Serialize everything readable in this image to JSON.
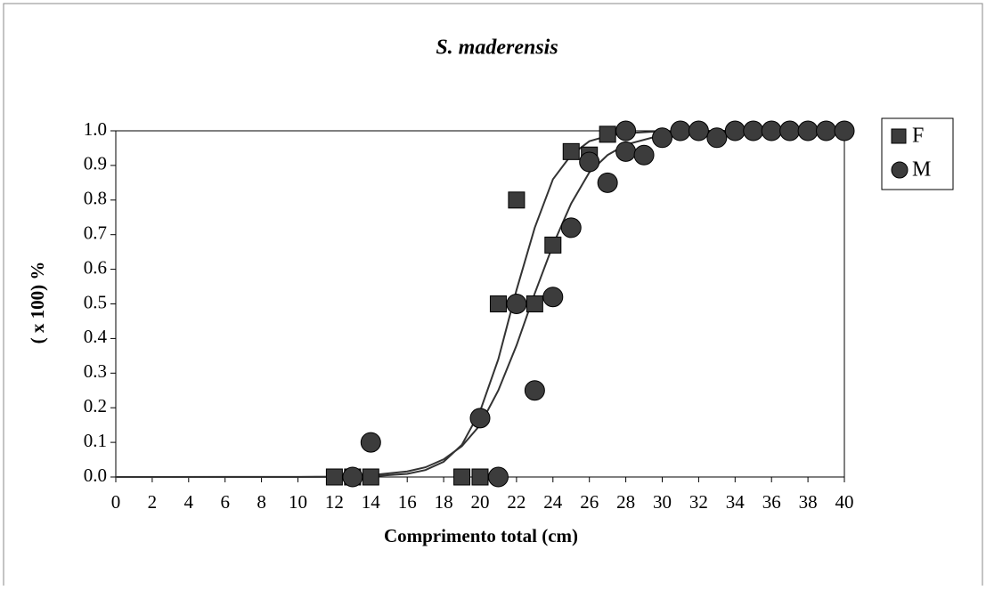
{
  "chart_data": {
    "type": "scatter",
    "title": "S. maderensis",
    "xlabel": "Comprimento total (cm)",
    "ylabel": "( x 100) %",
    "xlim": [
      0,
      40
    ],
    "ylim": [
      0,
      1
    ],
    "xticks": [
      0,
      2,
      4,
      6,
      8,
      10,
      12,
      14,
      16,
      18,
      20,
      22,
      24,
      26,
      28,
      30,
      32,
      34,
      36,
      38,
      40
    ],
    "yticks": [
      {
        "value": 0,
        "label": "0.0"
      },
      0.1,
      0.2,
      0.3,
      0.4,
      0.5,
      0.6,
      0.7,
      0.8,
      0.9,
      {
        "value": 1,
        "label": "1.0"
      }
    ],
    "legend": "right",
    "series": [
      {
        "name": "F",
        "marker": "square",
        "color": "#3c3c3c",
        "x": [
          12,
          13,
          14,
          19,
          20,
          21,
          22,
          23,
          24,
          25,
          26,
          27
        ],
        "values": [
          0,
          0,
          0,
          0,
          0,
          0.5,
          0.8,
          0.5,
          0.67,
          0.94,
          0.93,
          0.99
        ],
        "fit_x": [
          0,
          10,
          12,
          14,
          16,
          17,
          18,
          19,
          20,
          21,
          22,
          23,
          24,
          25,
          26,
          27,
          28,
          30,
          32,
          35,
          40
        ],
        "fit_values": [
          0,
          0,
          0.0004,
          0.002,
          0.009,
          0.02,
          0.044,
          0.093,
          0.19,
          0.34,
          0.54,
          0.72,
          0.86,
          0.93,
          0.97,
          0.985,
          0.993,
          0.999,
          1,
          1,
          1
        ]
      },
      {
        "name": "M",
        "marker": "circle",
        "color": "#3c3c3c",
        "x": [
          13,
          14,
          20,
          21,
          22,
          23,
          24,
          25,
          26,
          27,
          28,
          28,
          29,
          30,
          31,
          32,
          33,
          34,
          35,
          36,
          37,
          38,
          39,
          40
        ],
        "values": [
          0,
          0.1,
          0.17,
          0,
          0.5,
          0.25,
          0.52,
          0.72,
          0.91,
          0.85,
          0.94,
          1,
          0.93,
          0.98,
          1,
          1,
          0.98,
          1,
          1,
          1,
          1,
          1,
          1,
          1
        ],
        "fit_x": [
          0,
          10,
          12,
          14,
          16,
          17,
          18,
          19,
          20,
          21,
          22,
          23,
          24,
          25,
          26,
          27,
          28,
          30,
          32,
          35,
          40
        ],
        "fit_values": [
          0,
          0.0004,
          0.001,
          0.005,
          0.016,
          0.028,
          0.051,
          0.089,
          0.15,
          0.25,
          0.38,
          0.53,
          0.67,
          0.79,
          0.88,
          0.93,
          0.96,
          0.988,
          0.996,
          0.999,
          1
        ]
      }
    ]
  }
}
